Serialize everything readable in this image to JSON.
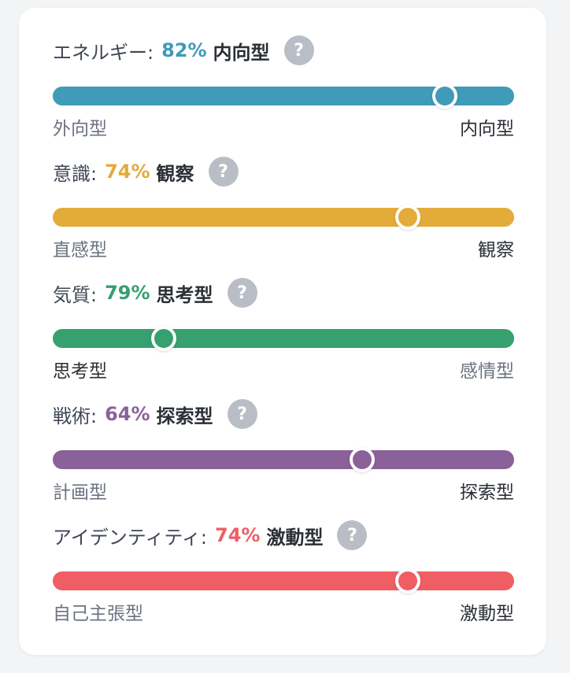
{
  "traits": [
    {
      "name": "エネルギー:",
      "percent": "82%",
      "type": "内向型",
      "left_label": "外向型",
      "right_label": "内向型",
      "active_side": "right",
      "level": 0.85,
      "color": "#3f9bb8",
      "help": "?"
    },
    {
      "name": "意識:",
      "percent": "74%",
      "type": "観察",
      "left_label": "直感型",
      "right_label": "観察",
      "active_side": "right",
      "level": 0.77,
      "color": "#e3ab3a",
      "help": "?"
    },
    {
      "name": "気質:",
      "percent": "79%",
      "type": "思考型",
      "left_label": "思考型",
      "right_label": "感情型",
      "active_side": "left",
      "level": 0.24,
      "color": "#36a06f",
      "help": "?"
    },
    {
      "name": "戦術:",
      "percent": "64%",
      "type": "探索型",
      "left_label": "計画型",
      "right_label": "探索型",
      "active_side": "right",
      "level": 0.67,
      "color": "#8a6199",
      "help": "?"
    },
    {
      "name": "アイデンティティ:",
      "percent": "74%",
      "type": "激動型",
      "left_label": "自己主張型",
      "right_label": "激動型",
      "active_side": "right",
      "level": 0.77,
      "color": "#ef5e63",
      "help": "?"
    }
  ]
}
